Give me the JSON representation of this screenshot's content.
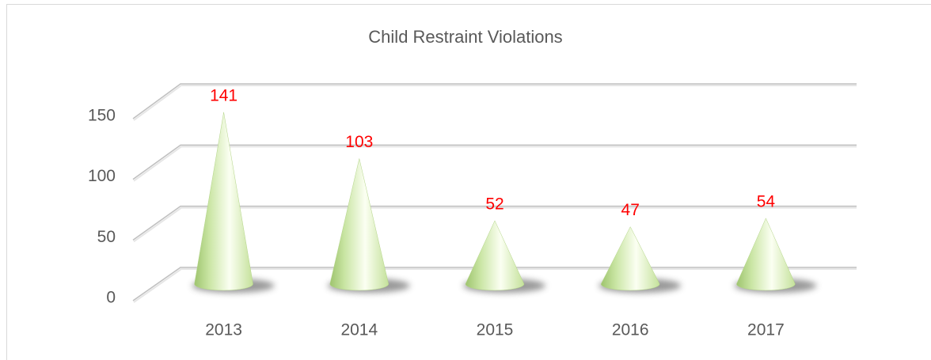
{
  "chart_data": {
    "type": "cone",
    "title": "Child Restraint Violations",
    "categories": [
      "2013",
      "2014",
      "2015",
      "2016",
      "2017"
    ],
    "values": [
      141,
      103,
      52,
      47,
      54
    ],
    "color": "#c4e19a",
    "label_color": "#ff0000",
    "ylim": [
      0,
      150
    ],
    "yticks": [
      0,
      50,
      100,
      150
    ],
    "grid": true
  }
}
